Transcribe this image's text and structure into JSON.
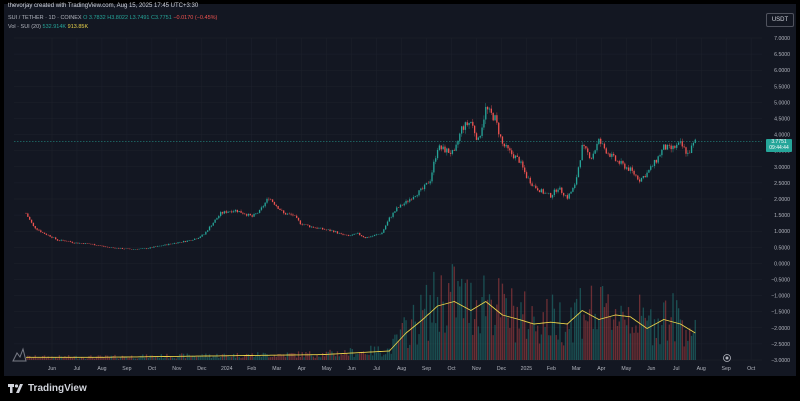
{
  "header": {
    "text": "thevorjay created with TradingView.com, Aug 15, 2025 17:45 UTC+3:30"
  },
  "legend": {
    "symbol": "SUI / TETHER · 1D · COINEX",
    "o": "O 3.7832",
    "h": "H3.8022",
    "l": "L3.7491",
    "c": "C3.7751",
    "change": "−0.0170 (−0.45%)",
    "vol_label": "Vol · SUI (20)",
    "vol_value": "532.914K",
    "vol_ma": "913.85K"
  },
  "currency": "USDT",
  "price_label": {
    "price": "3.7751",
    "countdown": "09:44:44"
  },
  "footer": {
    "brand": "TradingView"
  },
  "colors": {
    "up": "#26a69a",
    "down": "#ef5350",
    "ma": "#e9d24a",
    "background": "#131722",
    "grid": "#1e222d"
  },
  "chart_data": {
    "type": "candlestick",
    "y_ticks": [
      "7.0000",
      "6.5000",
      "6.0000",
      "5.5000",
      "5.0000",
      "4.5000",
      "4.0000",
      "3.5000",
      "3.0000",
      "2.5000",
      "2.0000",
      "1.5000",
      "1.0000",
      "0.5000",
      "0.0000",
      "−0.5000",
      "−1.0000",
      "−1.5000",
      "−2.0000",
      "−2.5000",
      "−3.0000"
    ],
    "ylim": [
      -3.0,
      7.0
    ],
    "x_ticks": [
      "Jun",
      "Jul",
      "Aug",
      "Sep",
      "Oct",
      "Nov",
      "Dec",
      "2024",
      "Feb",
      "Mar",
      "Apr",
      "May",
      "Jun",
      "Jul",
      "Aug",
      "Sep",
      "Oct",
      "Nov",
      "Dec",
      "2025",
      "Feb",
      "Mar",
      "Apr",
      "May",
      "Jun",
      "Jul",
      "Aug",
      "Sep",
      "Oct"
    ],
    "price_path": [
      [
        0,
        1.55
      ],
      [
        4,
        1.15
      ],
      [
        9,
        0.95
      ],
      [
        13,
        0.85
      ],
      [
        17,
        0.72
      ],
      [
        22,
        0.7
      ],
      [
        26,
        0.64
      ],
      [
        31,
        0.62
      ],
      [
        35,
        0.6
      ],
      [
        39,
        0.56
      ],
      [
        44,
        0.5
      ],
      [
        48,
        0.48
      ],
      [
        52,
        0.46
      ],
      [
        57,
        0.44
      ],
      [
        61,
        0.45
      ],
      [
        65,
        0.46
      ],
      [
        70,
        0.52
      ],
      [
        74,
        0.56
      ],
      [
        79,
        0.62
      ],
      [
        83,
        0.66
      ],
      [
        87,
        0.7
      ],
      [
        92,
        0.78
      ],
      [
        96,
        0.9
      ],
      [
        100,
        1.2
      ],
      [
        105,
        1.55
      ],
      [
        109,
        1.62
      ],
      [
        113,
        1.65
      ],
      [
        118,
        1.55
      ],
      [
        122,
        1.45
      ],
      [
        126,
        1.62
      ],
      [
        131,
        2.05
      ],
      [
        135,
        1.8
      ],
      [
        139,
        1.55
      ],
      [
        144,
        1.5
      ],
      [
        148,
        1.25
      ],
      [
        153,
        1.15
      ],
      [
        157,
        1.1
      ],
      [
        161,
        1.05
      ],
      [
        166,
        1.0
      ],
      [
        170,
        0.9
      ],
      [
        174,
        0.85
      ],
      [
        179,
        0.92
      ],
      [
        183,
        0.8
      ],
      [
        187,
        0.85
      ],
      [
        192,
        0.95
      ],
      [
        196,
        1.4
      ],
      [
        200,
        1.7
      ],
      [
        205,
        1.9
      ],
      [
        209,
        2.1
      ],
      [
        214,
        2.3
      ],
      [
        218,
        2.6
      ],
      [
        222,
        3.6
      ],
      [
        227,
        3.5
      ],
      [
        231,
        3.4
      ],
      [
        235,
        4.2
      ],
      [
        240,
        4.4
      ],
      [
        244,
        3.8
      ],
      [
        248,
        4.8
      ],
      [
        253,
        4.5
      ],
      [
        257,
        3.7
      ],
      [
        261,
        3.45
      ],
      [
        266,
        3.2
      ],
      [
        270,
        2.7
      ],
      [
        274,
        2.4
      ],
      [
        279,
        2.2
      ],
      [
        283,
        2.1
      ],
      [
        287,
        2.35
      ],
      [
        292,
        2.05
      ],
      [
        296,
        2.4
      ],
      [
        300,
        3.6
      ],
      [
        305,
        3.3
      ],
      [
        309,
        3.8
      ],
      [
        313,
        3.5
      ],
      [
        318,
        3.2
      ],
      [
        322,
        3.05
      ],
      [
        326,
        2.9
      ],
      [
        331,
        2.6
      ],
      [
        335,
        2.8
      ],
      [
        340,
        3.2
      ],
      [
        344,
        3.6
      ],
      [
        348,
        3.55
      ],
      [
        353,
        3.7
      ],
      [
        357,
        3.4
      ],
      [
        361,
        3.78
      ]
    ],
    "volume_ma_path": [
      [
        0,
        0.03
      ],
      [
        40,
        0.03
      ],
      [
        80,
        0.04
      ],
      [
        120,
        0.05
      ],
      [
        160,
        0.06
      ],
      [
        196,
        0.1
      ],
      [
        205,
        0.3
      ],
      [
        214,
        0.45
      ],
      [
        222,
        0.6
      ],
      [
        231,
        0.65
      ],
      [
        240,
        0.55
      ],
      [
        248,
        0.65
      ],
      [
        257,
        0.5
      ],
      [
        266,
        0.45
      ],
      [
        274,
        0.4
      ],
      [
        283,
        0.42
      ],
      [
        292,
        0.4
      ],
      [
        300,
        0.55
      ],
      [
        309,
        0.45
      ],
      [
        318,
        0.5
      ],
      [
        326,
        0.48
      ],
      [
        335,
        0.35
      ],
      [
        344,
        0.45
      ],
      [
        353,
        0.4
      ],
      [
        361,
        0.3
      ]
    ]
  }
}
